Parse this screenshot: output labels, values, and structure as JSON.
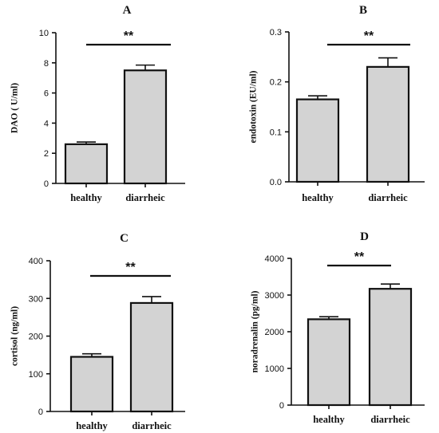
{
  "chart_data": [
    {
      "type": "bar",
      "panel": "A",
      "ylabel": "DAO ( U/ml)",
      "categories": [
        "healthy",
        "diarrheic"
      ],
      "values": [
        2.6,
        7.5
      ],
      "errors": [
        0.15,
        0.35
      ],
      "ylim": [
        0,
        10
      ],
      "yticks": [
        "0",
        "2",
        "4",
        "6",
        "8",
        "10"
      ],
      "significance": "**"
    },
    {
      "type": "bar",
      "panel": "B",
      "ylabel": "endotoxin (EU/ml)",
      "categories": [
        "healthy",
        "diarrheic"
      ],
      "values": [
        0.165,
        0.23
      ],
      "errors": [
        0.007,
        0.018
      ],
      "ylim": [
        0,
        0.3
      ],
      "yticks": [
        "0.0",
        "0.1",
        "0.2",
        "0.3"
      ],
      "significance": "**"
    },
    {
      "type": "bar",
      "panel": "C",
      "ylabel": "cortisol (ng/ml)",
      "categories": [
        "healthy",
        "diarrheic"
      ],
      "values": [
        145,
        288
      ],
      "errors": [
        8,
        17
      ],
      "ylim": [
        0,
        400
      ],
      "yticks": [
        "0",
        "100",
        "200",
        "300",
        "400"
      ],
      "significance": "**"
    },
    {
      "type": "bar",
      "panel": "D",
      "ylabel": "noradrenalin (pg/ml)",
      "categories": [
        "healthy",
        "diarrheic"
      ],
      "values": [
        2340,
        3170
      ],
      "errors": [
        70,
        130
      ],
      "ylim": [
        0,
        4000
      ],
      "yticks": [
        "0",
        "1000",
        "2000",
        "3000",
        "4000"
      ],
      "significance": "**"
    }
  ]
}
